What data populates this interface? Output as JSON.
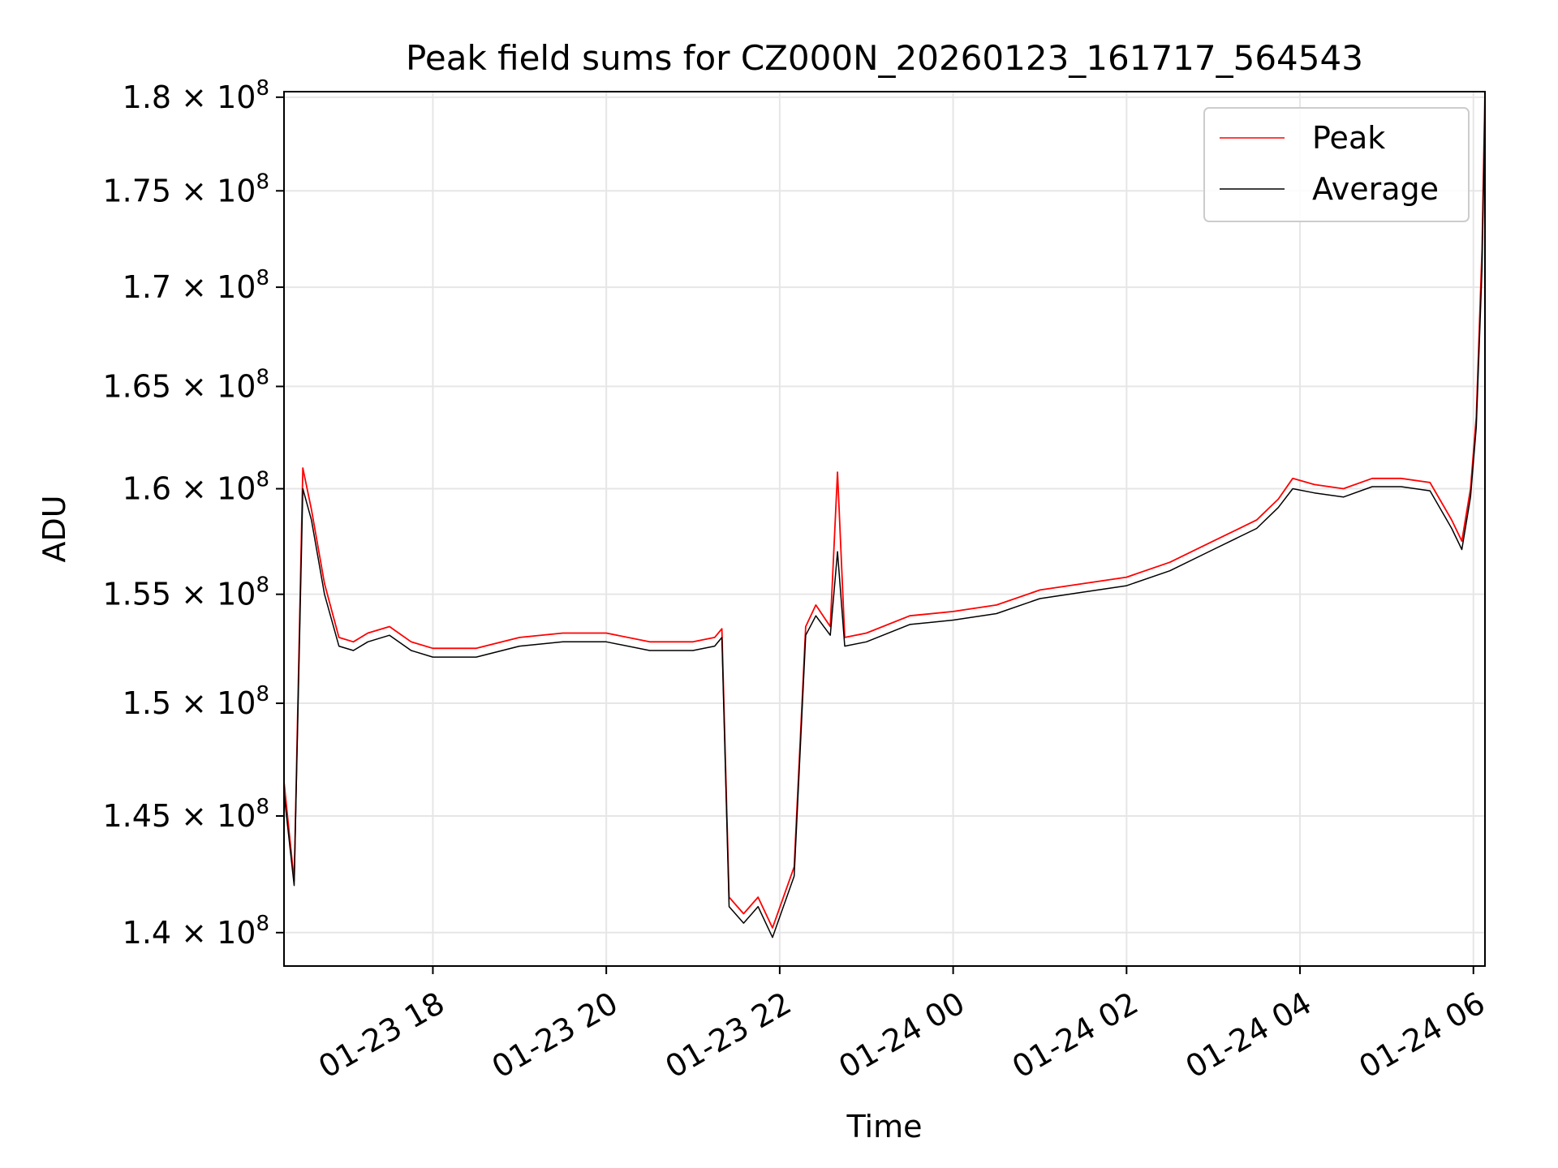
{
  "chart_data": {
    "type": "line",
    "title": "Peak field sums for CZ000N_20260123_161717_564543",
    "xlabel": "Time",
    "ylabel": "ADU",
    "x_ticks": [
      "01-23 18",
      "01-23 20",
      "01-23 22",
      "01-24 00",
      "01-24 02",
      "01-24 04",
      "01-24 06"
    ],
    "y_ticks": [
      {
        "value": 140000000,
        "mantissa": "1.4",
        "exp": "8"
      },
      {
        "value": 145000000,
        "mantissa": "1.45",
        "exp": "8"
      },
      {
        "value": 150000000,
        "mantissa": "1.5",
        "exp": "8"
      },
      {
        "value": 155000000,
        "mantissa": "1.55",
        "exp": "8"
      },
      {
        "value": 160000000,
        "mantissa": "1.6",
        "exp": "8"
      },
      {
        "value": 165000000,
        "mantissa": "1.65",
        "exp": "8"
      },
      {
        "value": 170000000,
        "mantissa": "1.7",
        "exp": "8"
      },
      {
        "value": 175000000,
        "mantissa": "1.75",
        "exp": "8"
      },
      {
        "value": 180000000,
        "mantissa": "1.8",
        "exp": "8"
      }
    ],
    "y_scale": "log",
    "xlim": [
      "2026-01-23 16:17",
      "2026-01-24 06:08"
    ],
    "ylim": [
      138600000,
      180300000
    ],
    "grid": true,
    "legend_position": "upper right",
    "series": [
      {
        "name": "Peak",
        "color": "#ff0000",
        "x": [
          "2026-01-23 16:17",
          "2026-01-23 16:24",
          "2026-01-23 16:30",
          "2026-01-23 16:36",
          "2026-01-23 16:45",
          "2026-01-23 16:55",
          "2026-01-23 17:05",
          "2026-01-23 17:15",
          "2026-01-23 17:30",
          "2026-01-23 17:45",
          "2026-01-23 18:00",
          "2026-01-23 18:30",
          "2026-01-23 19:00",
          "2026-01-23 19:30",
          "2026-01-23 20:00",
          "2026-01-23 20:30",
          "2026-01-23 21:00",
          "2026-01-23 21:15",
          "2026-01-23 21:20",
          "2026-01-23 21:25",
          "2026-01-23 21:35",
          "2026-01-23 21:45",
          "2026-01-23 21:55",
          "2026-01-23 22:10",
          "2026-01-23 22:18",
          "2026-01-23 22:25",
          "2026-01-23 22:35",
          "2026-01-23 22:40",
          "2026-01-23 22:45",
          "2026-01-23 23:00",
          "2026-01-23 23:30",
          "2026-01-24 00:00",
          "2026-01-24 00:30",
          "2026-01-24 01:00",
          "2026-01-24 01:30",
          "2026-01-24 02:00",
          "2026-01-24 02:30",
          "2026-01-24 03:00",
          "2026-01-24 03:30",
          "2026-01-24 03:45",
          "2026-01-24 03:55",
          "2026-01-24 04:10",
          "2026-01-24 04:30",
          "2026-01-24 04:50",
          "2026-01-24 05:10",
          "2026-01-24 05:30",
          "2026-01-24 05:45",
          "2026-01-24 05:52",
          "2026-01-24 05:58",
          "2026-01-24 06:02",
          "2026-01-24 06:06",
          "2026-01-24 06:08"
        ],
        "y": [
          146500000,
          142200000,
          161000000,
          159000000,
          155500000,
          153000000,
          152800000,
          153200000,
          153500000,
          152800000,
          152500000,
          152500000,
          153000000,
          153200000,
          153200000,
          152800000,
          152800000,
          153000000,
          153400000,
          141500000,
          140800000,
          141500000,
          140200000,
          142800000,
          153500000,
          154500000,
          153500000,
          160800000,
          153000000,
          153200000,
          154000000,
          154200000,
          154500000,
          155200000,
          155500000,
          155800000,
          156500000,
          157500000,
          158500000,
          159500000,
          160500000,
          160200000,
          160000000,
          160500000,
          160500000,
          160300000,
          158500000,
          157500000,
          160000000,
          163500000,
          172000000,
          180300000
        ]
      },
      {
        "name": "Average",
        "color": "#000000",
        "x": [
          "2026-01-23 16:17",
          "2026-01-23 16:24",
          "2026-01-23 16:30",
          "2026-01-23 16:36",
          "2026-01-23 16:45",
          "2026-01-23 16:55",
          "2026-01-23 17:05",
          "2026-01-23 17:15",
          "2026-01-23 17:30",
          "2026-01-23 17:45",
          "2026-01-23 18:00",
          "2026-01-23 18:30",
          "2026-01-23 19:00",
          "2026-01-23 19:30",
          "2026-01-23 20:00",
          "2026-01-23 20:30",
          "2026-01-23 21:00",
          "2026-01-23 21:15",
          "2026-01-23 21:20",
          "2026-01-23 21:25",
          "2026-01-23 21:35",
          "2026-01-23 21:45",
          "2026-01-23 21:55",
          "2026-01-23 22:10",
          "2026-01-23 22:18",
          "2026-01-23 22:25",
          "2026-01-23 22:35",
          "2026-01-23 22:40",
          "2026-01-23 22:45",
          "2026-01-23 23:00",
          "2026-01-23 23:30",
          "2026-01-24 00:00",
          "2026-01-24 00:30",
          "2026-01-24 01:00",
          "2026-01-24 01:30",
          "2026-01-24 02:00",
          "2026-01-24 02:30",
          "2026-01-24 03:00",
          "2026-01-24 03:30",
          "2026-01-24 03:45",
          "2026-01-24 03:55",
          "2026-01-24 04:10",
          "2026-01-24 04:30",
          "2026-01-24 04:50",
          "2026-01-24 05:10",
          "2026-01-24 05:30",
          "2026-01-24 05:45",
          "2026-01-24 05:52",
          "2026-01-24 05:58",
          "2026-01-24 06:02",
          "2026-01-24 06:06",
          "2026-01-24 06:08"
        ],
        "y": [
          146000000,
          142000000,
          160000000,
          158500000,
          155000000,
          152600000,
          152400000,
          152800000,
          153100000,
          152400000,
          152100000,
          152100000,
          152600000,
          152800000,
          152800000,
          152400000,
          152400000,
          152600000,
          153000000,
          141100000,
          140400000,
          141100000,
          139800000,
          142400000,
          153100000,
          154000000,
          153100000,
          157000000,
          152600000,
          152800000,
          153600000,
          153800000,
          154100000,
          154800000,
          155100000,
          155400000,
          156100000,
          157100000,
          158100000,
          159100000,
          160000000,
          159800000,
          159600000,
          160100000,
          160100000,
          159900000,
          158100000,
          157100000,
          159600000,
          163000000,
          171000000,
          179500000
        ]
      }
    ]
  }
}
